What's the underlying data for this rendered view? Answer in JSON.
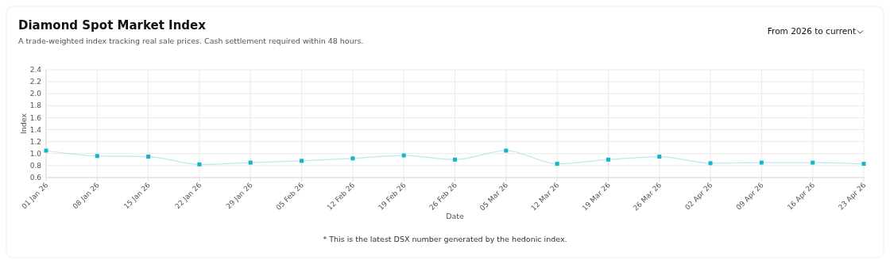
{
  "chart_data": {
    "type": "line",
    "title": "Diamond Spot Market Index",
    "subtitle": "A trade-weighted index tracking real sale prices. Cash settlement required within 48 hours.",
    "xlabel": "Date",
    "ylabel": "Index",
    "annotations": [
      "From 2026 to current",
      "* This is the latest DSX number generated by the hedonic index."
    ],
    "categories": [
      "01 Jan 26",
      "08 Jan 26",
      "15 Jan 26",
      "22 Jan 26",
      "29 Jan 26",
      "05 Feb 26",
      "12 Feb 26",
      "19 Feb 26",
      "26 Feb 26",
      "05 Mar 26",
      "12 Mar 26",
      "19 Mar 26",
      "26 Mar 26",
      "02 Apr 26",
      "09 Apr 26",
      "16 Apr 26",
      "23 Apr 26"
    ],
    "series": [
      {
        "color": "#13b5c6",
        "values": [
          1.05,
          0.96,
          0.95,
          0.82,
          0.85,
          0.88,
          0.92,
          0.97,
          0.9,
          1.05,
          0.83,
          0.9,
          0.95,
          0.84,
          0.85,
          0.85,
          0.83
        ]
      }
    ],
    "ylim": [
      0.6,
      2.4
    ],
    "yticks": [
      {
        "value": 0.6,
        "label": "0.6"
      },
      {
        "value": 0.8,
        "label": "0.8"
      },
      {
        "value": 1.0,
        "label": "1.0"
      },
      {
        "value": 1.2,
        "label": "1.2"
      },
      {
        "value": 1.4,
        "label": "1.4"
      },
      {
        "value": 1.6,
        "label": "1.6"
      },
      {
        "value": 1.8,
        "label": "1.8"
      },
      {
        "value": 2.0,
        "label": "2.0"
      },
      {
        "value": 2.2,
        "label": "2.2"
      },
      {
        "value": 2.4,
        "label": "2.4"
      }
    ],
    "grid": true,
    "marker": "square",
    "line_style": "solid"
  }
}
